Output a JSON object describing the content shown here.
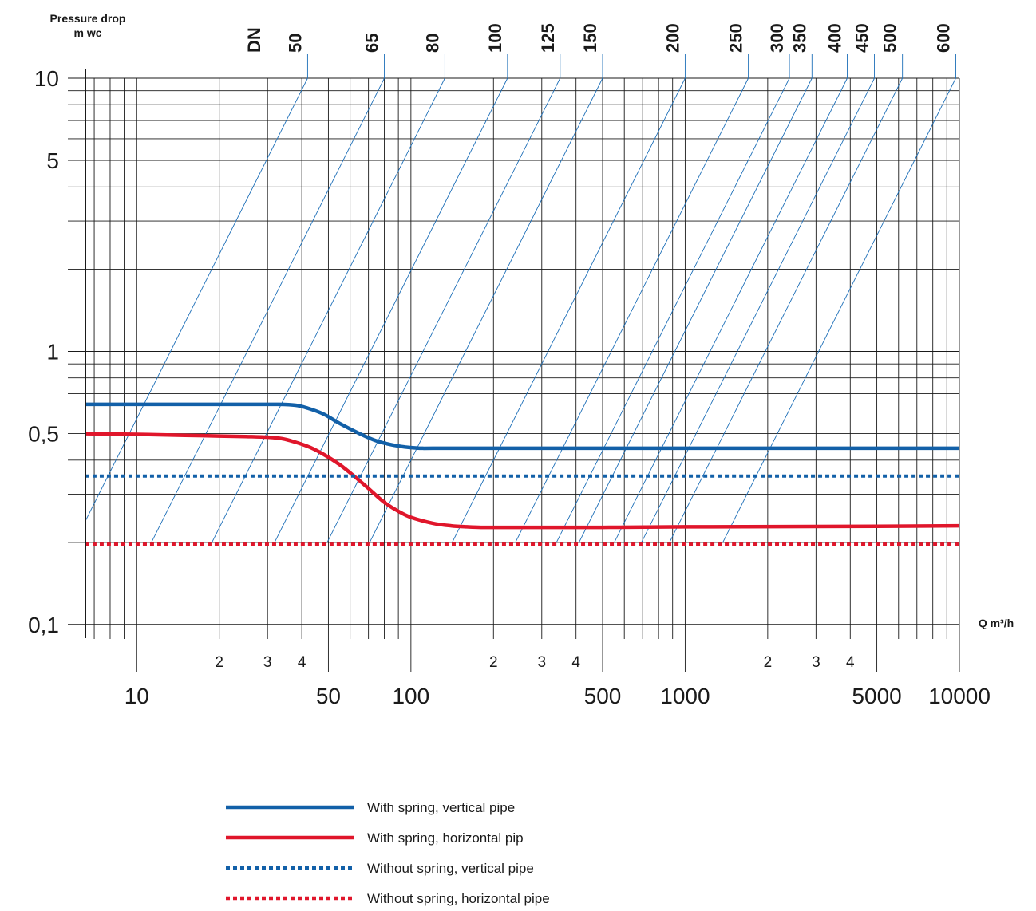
{
  "chart_data": {
    "type": "line",
    "title": "",
    "ylabel_line1": "Pressure drop",
    "ylabel_line2": "m wc",
    "xlabel": "Q m³/h",
    "dn_label": "DN",
    "x_scale": "log",
    "y_scale": "log",
    "xlim": [
      6.5,
      10000
    ],
    "ylim": [
      0.1,
      10
    ],
    "grid": true,
    "y_ticks": [
      {
        "value": 10,
        "label": "10"
      },
      {
        "value": 5,
        "label": "5"
      },
      {
        "value": 1,
        "label": "1"
      },
      {
        "value": 0.5,
        "label": "0,5"
      },
      {
        "value": 0.1,
        "label": "0,1"
      }
    ],
    "x_main_ticks": [
      {
        "value": 10,
        "label": "10"
      },
      {
        "value": 50,
        "label": "50"
      },
      {
        "value": 100,
        "label": "100"
      },
      {
        "value": 500,
        "label": "500"
      },
      {
        "value": 1000,
        "label": "1000"
      },
      {
        "value": 5000,
        "label": "5000"
      },
      {
        "value": 10000,
        "label": "10000"
      }
    ],
    "x_sub_ticks": [
      {
        "value": 20,
        "label": "2"
      },
      {
        "value": 30,
        "label": "3"
      },
      {
        "value": 40,
        "label": "4"
      },
      {
        "value": 200,
        "label": "2"
      },
      {
        "value": 300,
        "label": "3"
      },
      {
        "value": 400,
        "label": "4"
      },
      {
        "value": 2000,
        "label": "2"
      },
      {
        "value": 3000,
        "label": "3"
      },
      {
        "value": 4000,
        "label": "4"
      }
    ],
    "dn_sizes": [
      {
        "label": "50",
        "q_at_10": 42
      },
      {
        "label": "65",
        "q_at_10": 80
      },
      {
        "label": "80",
        "q_at_10": 133
      },
      {
        "label": "100",
        "q_at_10": 225
      },
      {
        "label": "125",
        "q_at_10": 350
      },
      {
        "label": "150",
        "q_at_10": 500
      },
      {
        "label": "200",
        "q_at_10": 1000
      },
      {
        "label": "250",
        "q_at_10": 1700
      },
      {
        "label": "300",
        "q_at_10": 2400
      },
      {
        "label": "350",
        "q_at_10": 2900
      },
      {
        "label": "400",
        "q_at_10": 3900
      },
      {
        "label": "450",
        "q_at_10": 4900
      },
      {
        "label": "500",
        "q_at_10": 6200
      },
      {
        "label": "600",
        "q_at_10": 9700
      }
    ],
    "diagonal_slope": 2,
    "series": [
      {
        "name": "With spring, vertical pipe",
        "color": "#1260a8",
        "style": "solid",
        "x": [
          6.5,
          15,
          25,
          33,
          38,
          42,
          48,
          55,
          65,
          75,
          85,
          95,
          105,
          110,
          120,
          200,
          500,
          1000,
          5000,
          10000
        ],
        "y": [
          0.64,
          0.64,
          0.64,
          0.64,
          0.635,
          0.62,
          0.59,
          0.545,
          0.5,
          0.47,
          0.455,
          0.447,
          0.443,
          0.442,
          0.442,
          0.442,
          0.442,
          0.442,
          0.442,
          0.442
        ]
      },
      {
        "name": "With spring, horizontal pip",
        "color": "#e0162b",
        "style": "solid",
        "x": [
          6.5,
          10,
          15,
          20,
          25,
          30,
          34,
          38,
          43,
          48,
          55,
          62,
          70,
          80,
          90,
          100,
          120,
          140,
          160,
          180,
          200,
          300,
          500,
          1000,
          5000,
          10000
        ],
        "y": [
          0.5,
          0.497,
          0.493,
          0.49,
          0.488,
          0.485,
          0.479,
          0.465,
          0.445,
          0.42,
          0.385,
          0.35,
          0.315,
          0.28,
          0.26,
          0.247,
          0.235,
          0.23,
          0.228,
          0.227,
          0.227,
          0.227,
          0.227,
          0.228,
          0.229,
          0.23
        ]
      },
      {
        "name": "Without spring, vertical pipe",
        "color": "#1260a8",
        "style": "dotted",
        "x": [
          6.5,
          10000
        ],
        "y": [
          0.35,
          0.35
        ]
      },
      {
        "name": "Without spring, horizontal pipe",
        "color": "#e0162b",
        "style": "dotted",
        "x": [
          6.5,
          10000
        ],
        "y": [
          0.197,
          0.197
        ]
      }
    ]
  }
}
